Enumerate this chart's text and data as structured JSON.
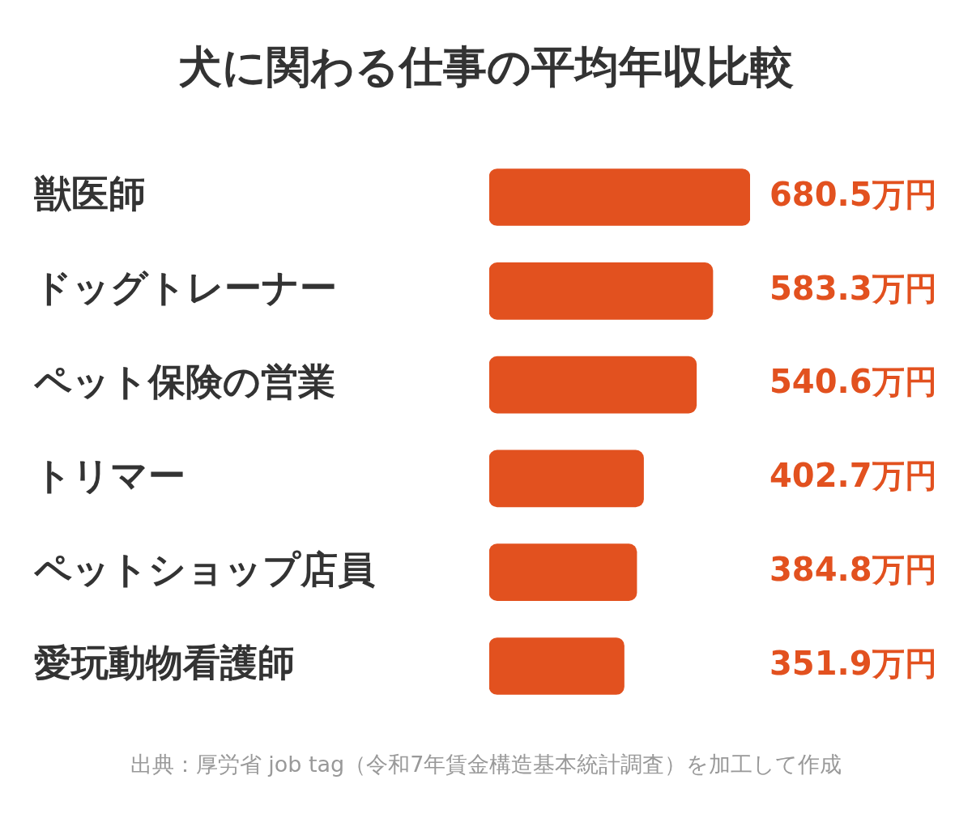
{
  "chart_data": {
    "type": "bar",
    "orientation": "horizontal",
    "title": "犬に関わる仕事の平均年収比較",
    "categories": [
      "獣医師",
      "ドッグトレーナー",
      "ペット保険の営業",
      "トリマー",
      "ペットショップ店員",
      "愛玩動物看護師"
    ],
    "series": [
      {
        "color": "#e2511f",
        "values": [
          680.5,
          583.3,
          540.6,
          402.7,
          384.8,
          351.9
        ],
        "value_labels": [
          "680.5万円",
          "583.3万円",
          "540.6万円",
          "402.7万円",
          "384.8万円",
          "351.9万円"
        ]
      }
    ],
    "grid": false,
    "legend": false,
    "tick_labels": "y",
    "annotations": [
      "出典：厚労省 job tag（令和7年賃金構造基本統計調査）を加工して作成"
    ]
  }
}
